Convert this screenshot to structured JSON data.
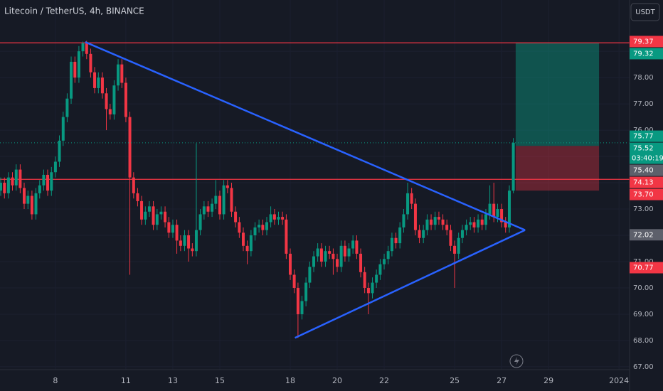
{
  "chart_data": {
    "type": "candlestick",
    "title": "Litecoin / TetherUS, 4h, BINANCE",
    "currency": "USDT",
    "up_color": "#089981",
    "down_color": "#f23645",
    "grid": true,
    "grid_color": "#1c2030",
    "xlim": [
      5.64,
      32.45
    ],
    "ylim": [
      66.89,
      80.95
    ],
    "xticks": [
      8,
      11,
      13,
      15,
      18,
      20,
      22,
      25,
      27,
      29,
      {
        "value": 32,
        "label": "2024"
      }
    ],
    "yticks": [
      {
        "value": 67,
        "label": "67.00"
      },
      {
        "value": 68,
        "label": "68.00"
      },
      {
        "value": 69,
        "label": "69.00"
      },
      {
        "value": 70,
        "label": "70.00"
      },
      {
        "value": 71,
        "label": "71.00"
      },
      {
        "value": 72,
        "label": "72.00"
      },
      {
        "value": 73,
        "label": "73.00"
      },
      {
        "value": 74,
        "label": "74.00"
      },
      {
        "value": 75,
        "label": "75.00"
      },
      {
        "value": 76,
        "label": "76.00"
      },
      {
        "value": 77,
        "label": "77.00"
      },
      {
        "value": 78,
        "label": "78.00"
      },
      {
        "value": 79,
        "label": "79.00"
      }
    ],
    "ohlc": [
      [
        5.67,
        73.7,
        74.2,
        73.5,
        74.0
      ],
      [
        5.83,
        74.0,
        74.2,
        73.4,
        73.6
      ],
      [
        6,
        73.6,
        74.4,
        73.4,
        74.2
      ],
      [
        6.17,
        74.2,
        74.4,
        73.7,
        73.9
      ],
      [
        6.33,
        73.9,
        74.7,
        73.7,
        74.5
      ],
      [
        6.5,
        74.5,
        74.7,
        73.6,
        73.8
      ],
      [
        6.67,
        73.8,
        74.0,
        73.0,
        73.2
      ],
      [
        6.83,
        73.2,
        73.7,
        73.0,
        73.5
      ],
      [
        7,
        73.5,
        73.7,
        72.6,
        72.8
      ],
      [
        7.17,
        72.8,
        73.8,
        72.6,
        73.6
      ],
      [
        7.33,
        73.6,
        74.1,
        73.4,
        73.9
      ],
      [
        7.5,
        73.9,
        74.5,
        73.7,
        74.3
      ],
      [
        7.67,
        74.3,
        74.5,
        73.5,
        73.7
      ],
      [
        7.83,
        73.7,
        74.6,
        73.5,
        74.4
      ],
      [
        8,
        74.4,
        75.0,
        74.2,
        74.8
      ],
      [
        8.17,
        74.8,
        75.8,
        74.6,
        75.6
      ],
      [
        8.33,
        75.6,
        76.7,
        75.4,
        76.5
      ],
      [
        8.5,
        76.5,
        77.4,
        76.3,
        77.2
      ],
      [
        8.67,
        77.2,
        78.8,
        77.0,
        78.6
      ],
      [
        8.83,
        78.6,
        78.8,
        77.8,
        78.0
      ],
      [
        9,
        78.0,
        79.2,
        77.8,
        79.0
      ],
      [
        9.17,
        79.0,
        79.37,
        78.8,
        79.3
      ],
      [
        9.33,
        79.3,
        79.4,
        78.7,
        78.9
      ],
      [
        9.5,
        78.9,
        79.1,
        78.0,
        78.2
      ],
      [
        9.67,
        78.2,
        78.4,
        77.4,
        77.6
      ],
      [
        9.83,
        77.6,
        78.2,
        77.4,
        78.0
      ],
      [
        10,
        78.0,
        78.2,
        77.2,
        77.4
      ],
      [
        10.17,
        77.4,
        77.6,
        76.0,
        76.8
      ],
      [
        10.33,
        76.8,
        77.0,
        76.4,
        76.6
      ],
      [
        10.5,
        76.6,
        77.9,
        76.4,
        77.7
      ],
      [
        10.67,
        77.7,
        78.7,
        77.5,
        78.5
      ],
      [
        10.83,
        78.5,
        78.7,
        77.6,
        77.8
      ],
      [
        11,
        77.8,
        78.0,
        76.3,
        76.5
      ],
      [
        11.17,
        76.5,
        76.7,
        70.5,
        74.2
      ],
      [
        11.33,
        74.2,
        74.4,
        73.4,
        73.6
      ],
      [
        11.5,
        73.6,
        73.8,
        73.1,
        73.3
      ],
      [
        11.67,
        73.3,
        73.5,
        72.4,
        72.6
      ],
      [
        11.83,
        72.6,
        73.1,
        72.4,
        72.9
      ],
      [
        12,
        72.9,
        73.3,
        72.7,
        73.1
      ],
      [
        12.17,
        73.1,
        73.3,
        72.2,
        72.4
      ],
      [
        12.33,
        72.4,
        73.0,
        72.2,
        72.8
      ],
      [
        12.5,
        72.8,
        73.1,
        72.6,
        72.9
      ],
      [
        12.67,
        72.9,
        73.1,
        72.3,
        72.5
      ],
      [
        12.83,
        72.5,
        72.7,
        71.9,
        72.1
      ],
      [
        13,
        72.1,
        72.6,
        71.9,
        72.4
      ],
      [
        13.17,
        72.4,
        72.6,
        71.3,
        71.8
      ],
      [
        13.33,
        71.8,
        72.0,
        71.4,
        71.6
      ],
      [
        13.5,
        71.6,
        72.2,
        71.4,
        72.0
      ],
      [
        13.67,
        72.0,
        72.2,
        71.0,
        71.5
      ],
      [
        13.83,
        71.5,
        71.7,
        71.2,
        71.4
      ],
      [
        14,
        71.4,
        75.5,
        71.2,
        72.2
      ],
      [
        14.17,
        72.2,
        73.0,
        72.0,
        72.8
      ],
      [
        14.33,
        72.8,
        73.3,
        72.6,
        73.1
      ],
      [
        14.5,
        73.1,
        73.3,
        72.7,
        72.9
      ],
      [
        14.67,
        72.9,
        73.4,
        72.7,
        73.2
      ],
      [
        14.83,
        73.2,
        74.1,
        73.0,
        73.5
      ],
      [
        15,
        73.5,
        73.7,
        72.6,
        72.8
      ],
      [
        15.17,
        72.8,
        74.1,
        72.6,
        73.9
      ],
      [
        15.33,
        73.9,
        74.1,
        73.6,
        73.8
      ],
      [
        15.5,
        73.8,
        74.0,
        72.7,
        72.9
      ],
      [
        15.67,
        72.9,
        73.1,
        72.3,
        72.5
      ],
      [
        15.83,
        72.5,
        72.7,
        71.9,
        72.1
      ],
      [
        16,
        72.1,
        72.3,
        71.4,
        71.6
      ],
      [
        16.17,
        71.6,
        71.8,
        70.9,
        71.4
      ],
      [
        16.33,
        71.4,
        72.2,
        71.2,
        72.0
      ],
      [
        16.5,
        72.0,
        72.5,
        71.8,
        72.3
      ],
      [
        16.67,
        72.3,
        72.6,
        72.1,
        72.4
      ],
      [
        16.83,
        72.4,
        72.6,
        72.0,
        72.2
      ],
      [
        17,
        72.2,
        72.7,
        72.0,
        72.5
      ],
      [
        17.17,
        72.5,
        73.1,
        72.3,
        72.8
      ],
      [
        17.33,
        72.8,
        73.0,
        72.4,
        72.6
      ],
      [
        17.5,
        72.6,
        72.9,
        72.4,
        72.7
      ],
      [
        17.67,
        72.7,
        72.9,
        72.4,
        72.6
      ],
      [
        17.83,
        72.6,
        72.8,
        71.1,
        71.3
      ],
      [
        18,
        71.3,
        71.5,
        70.3,
        70.5
      ],
      [
        18.17,
        70.5,
        70.7,
        69.8,
        70.0
      ],
      [
        18.33,
        70.0,
        70.2,
        68.1,
        69.0
      ],
      [
        18.5,
        69.0,
        69.7,
        68.8,
        69.5
      ],
      [
        18.67,
        69.5,
        70.4,
        69.3,
        70.2
      ],
      [
        18.83,
        70.2,
        71.0,
        70.0,
        70.8
      ],
      [
        19,
        70.8,
        71.4,
        70.6,
        71.2
      ],
      [
        19.17,
        71.2,
        71.7,
        71.0,
        71.5
      ],
      [
        19.33,
        71.5,
        71.7,
        70.8,
        71.0
      ],
      [
        19.5,
        71.0,
        71.6,
        70.8,
        71.4
      ],
      [
        19.67,
        71.4,
        71.6,
        71.1,
        71.3
      ],
      [
        19.83,
        71.3,
        71.5,
        70.5,
        71.1
      ],
      [
        20,
        71.1,
        71.3,
        70.6,
        70.8
      ],
      [
        20.17,
        70.8,
        71.8,
        70.6,
        71.6
      ],
      [
        20.33,
        71.6,
        71.8,
        71.0,
        71.2
      ],
      [
        20.5,
        71.2,
        71.7,
        71.0,
        71.5
      ],
      [
        20.67,
        71.5,
        72.0,
        71.3,
        71.8
      ],
      [
        20.83,
        71.8,
        72.0,
        71.1,
        71.3
      ],
      [
        21,
        71.3,
        71.5,
        70.4,
        70.6
      ],
      [
        21.17,
        70.6,
        70.8,
        69.8,
        70.0
      ],
      [
        21.33,
        70.0,
        70.2,
        69.0,
        69.8
      ],
      [
        21.5,
        69.8,
        70.4,
        69.6,
        70.2
      ],
      [
        21.67,
        70.2,
        70.7,
        70.0,
        70.5
      ],
      [
        21.83,
        70.5,
        71.1,
        70.3,
        70.9
      ],
      [
        22,
        70.9,
        71.3,
        70.7,
        71.1
      ],
      [
        22.17,
        71.1,
        71.6,
        70.9,
        71.4
      ],
      [
        22.33,
        71.4,
        72.1,
        71.2,
        71.9
      ],
      [
        22.5,
        71.9,
        72.1,
        71.5,
        71.7
      ],
      [
        22.67,
        71.7,
        72.5,
        71.5,
        72.3
      ],
      [
        22.83,
        72.3,
        73.0,
        72.1,
        72.8
      ],
      [
        23,
        72.8,
        74.0,
        72.6,
        73.6
      ],
      [
        23.17,
        73.6,
        73.8,
        73.0,
        73.2
      ],
      [
        23.33,
        73.2,
        73.4,
        72.0,
        72.2
      ],
      [
        23.5,
        72.2,
        72.4,
        71.7,
        71.9
      ],
      [
        23.67,
        71.9,
        72.4,
        71.7,
        72.2
      ],
      [
        23.83,
        72.2,
        72.8,
        72.0,
        72.6
      ],
      [
        24,
        72.6,
        72.8,
        72.2,
        72.4
      ],
      [
        24.17,
        72.4,
        72.9,
        72.2,
        72.7
      ],
      [
        24.33,
        72.7,
        72.9,
        72.4,
        72.6
      ],
      [
        24.5,
        72.6,
        72.8,
        72.2,
        72.4
      ],
      [
        24.67,
        72.4,
        72.6,
        72.0,
        72.2
      ],
      [
        24.83,
        72.2,
        72.4,
        71.4,
        71.6
      ],
      [
        25,
        71.6,
        71.8,
        70.0,
        71.3
      ],
      [
        25.17,
        71.3,
        72.1,
        71.1,
        71.9
      ],
      [
        25.33,
        71.9,
        72.4,
        71.7,
        72.2
      ],
      [
        25.5,
        72.2,
        72.6,
        72.0,
        72.4
      ],
      [
        25.67,
        72.4,
        72.7,
        72.2,
        72.5
      ],
      [
        25.83,
        72.5,
        72.7,
        72.1,
        72.3
      ],
      [
        26,
        72.3,
        72.8,
        72.1,
        72.6
      ],
      [
        26.17,
        72.6,
        72.8,
        72.2,
        72.4
      ],
      [
        26.33,
        72.4,
        73.0,
        72.2,
        72.8
      ],
      [
        26.5,
        72.8,
        73.9,
        72.6,
        73.2
      ],
      [
        26.67,
        73.2,
        74.0,
        72.5,
        72.7
      ],
      [
        26.83,
        72.7,
        73.2,
        72.5,
        73.0
      ],
      [
        27,
        73.0,
        73.2,
        72.3,
        72.5
      ],
      [
        27.17,
        72.5,
        72.7,
        72.1,
        72.3
      ],
      [
        27.33,
        72.3,
        73.9,
        72.1,
        73.7
      ],
      [
        27.5,
        73.7,
        75.7,
        73.6,
        75.52
      ]
    ],
    "hlines": [
      {
        "value": 79.32,
        "color": "#f23645"
      },
      {
        "value": 74.13,
        "color": "#f23645"
      }
    ],
    "trendlines": [
      {
        "color": "#2962ff",
        "points": [
          [
            9.27,
            79.35
          ],
          [
            28.0,
            72.2
          ]
        ]
      },
      {
        "color": "#2962ff",
        "points": [
          [
            18.2,
            68.1
          ],
          [
            28.0,
            72.2
          ]
        ]
      }
    ],
    "position": {
      "x": [
        27.6,
        31.15
      ],
      "entry": 75.4,
      "target": 79.32,
      "stop": 73.7
    },
    "price_tags": [
      {
        "value": 79.37,
        "color": "#f23645"
      },
      {
        "value": 79.32,
        "color": "#089981"
      },
      {
        "value": 75.77,
        "color": "#089981"
      },
      {
        "value": 75.52,
        "color": "#089981",
        "countdown": "03:40:19"
      },
      {
        "value": 75.4,
        "label": "75.40",
        "color": "#5d606b"
      },
      {
        "value": 74.13,
        "color": "#f23645"
      },
      {
        "value": 73.7,
        "label": "73.70",
        "color": "#f23645"
      },
      {
        "value": 72.02,
        "color": "#5d606b"
      },
      {
        "value": 70.77,
        "color": "#f23645"
      }
    ]
  }
}
